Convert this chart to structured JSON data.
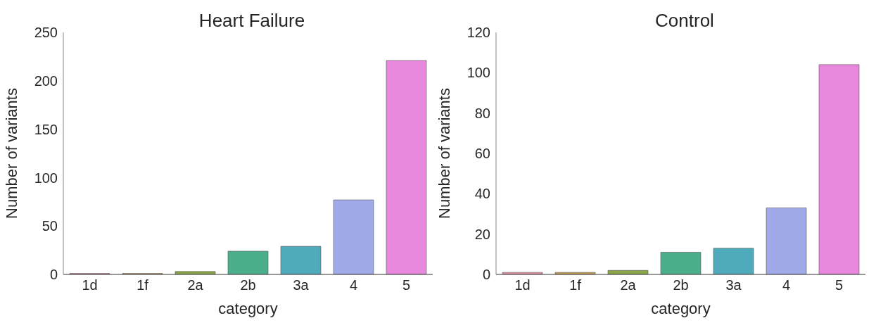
{
  "chart_data": [
    {
      "type": "bar",
      "title": "Heart Failure",
      "xlabel": "category",
      "ylabel": "Number of variants",
      "categories": [
        "1d",
        "1f",
        "2a",
        "2b",
        "3a",
        "4",
        "5"
      ],
      "values": [
        1,
        1,
        3,
        24,
        29,
        77,
        221
      ],
      "colors": [
        "#e58fa0",
        "#c49a4c",
        "#8ba648",
        "#4caf8c",
        "#4fabbc",
        "#a0aae8",
        "#e889de"
      ],
      "ylim": [
        0,
        250
      ],
      "yticks": [
        0,
        50,
        100,
        150,
        200,
        250
      ],
      "grid": false,
      "legend": false
    },
    {
      "type": "bar",
      "title": "Control",
      "xlabel": "category",
      "ylabel": "Number of variants",
      "categories": [
        "1d",
        "1f",
        "2a",
        "2b",
        "3a",
        "4",
        "5"
      ],
      "values": [
        1,
        1,
        2,
        11,
        13,
        33,
        104
      ],
      "colors": [
        "#e58fa0",
        "#c49a4c",
        "#8ba648",
        "#4caf8c",
        "#4fabbc",
        "#a0aae8",
        "#e889de"
      ],
      "ylim": [
        0,
        120
      ],
      "yticks": [
        0,
        20,
        40,
        60,
        80,
        100,
        120
      ],
      "grid": false,
      "legend": false
    }
  ]
}
